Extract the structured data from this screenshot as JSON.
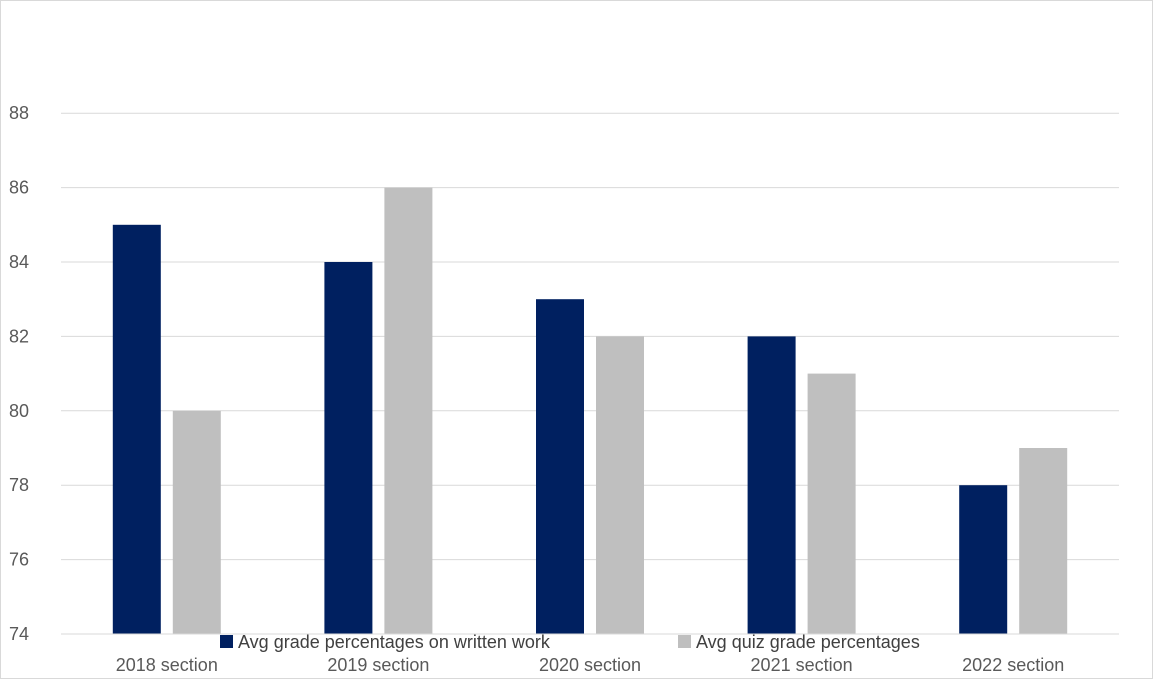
{
  "chart_data": {
    "type": "bar",
    "title": "",
    "xlabel": "",
    "ylabel": "",
    "categories": [
      "2018 section",
      "2019 section",
      "2020 section",
      "2021 section",
      "2022 section"
    ],
    "series": [
      {
        "name": "Avg grade percentages on written work",
        "values": [
          85,
          84,
          83,
          82,
          78
        ],
        "color": "#002060"
      },
      {
        "name": "Avg quiz grade percentages",
        "values": [
          80,
          86,
          82,
          81,
          79
        ],
        "color": "#bfbfbf"
      }
    ],
    "ylim": [
      74,
      90
    ],
    "yticks": [
      74,
      76,
      78,
      80,
      82,
      84,
      86,
      88
    ],
    "grid": true,
    "gridColor": "#d9d9d9",
    "legend": "bottom"
  }
}
